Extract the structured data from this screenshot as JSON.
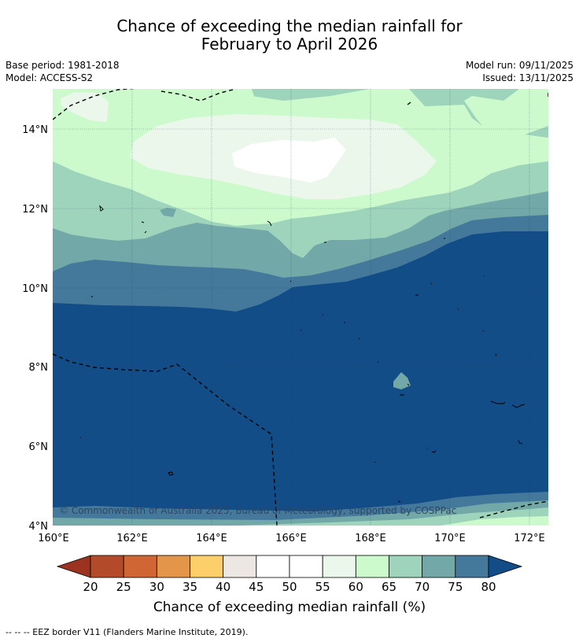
{
  "title_line1": "Chance of exceeding the median rainfall for",
  "title_line2": "February to April 2026",
  "base_period": "Base period: 1981-2018",
  "model": "Model: ACCESS-S2",
  "model_run": "Model run: 09/11/2025",
  "issued": "Issued: 13/11/2025",
  "copyright": "© Commonwealth of Australia 2025, Bureau of Meteorology, supported by COSPPac",
  "lat_labels": [
    "14°N",
    "12°N",
    "10°N",
    "8°N",
    "6°N",
    "4°N"
  ],
  "lon_labels": [
    "160°E",
    "162°E",
    "164°E",
    "166°E",
    "168°E",
    "170°E",
    "172°E"
  ],
  "colorbar": {
    "title": "Chance of exceeding median rainfall (%)",
    "ticks": [
      "20",
      "25",
      "30",
      "35",
      "40",
      "45",
      "50",
      "55",
      "60",
      "65",
      "70",
      "75",
      "80"
    ],
    "colors": [
      "#b34b2a",
      "#cf6634",
      "#e39649",
      "#fdcf6a",
      "#ece7e3",
      "#ffffff",
      "#ffffff",
      "#ecf7ec",
      "#ccfacc",
      "#9fd4bc",
      "#72a9a8",
      "#45799c"
    ],
    "under_color": "#9c3320",
    "over_color": "#124d88"
  },
  "legend_palette": {
    "c55_60": "#ecf7ec",
    "c60_65": "#ccfacc",
    "c65_70": "#9fd4bc",
    "c70_75": "#72a9a8",
    "c75_80": "#45799c",
    "c80_plus": "#124d88"
  },
  "footnote": "-- -- -- EEZ border V11 (Flanders Marine Institute, 2019)."
}
